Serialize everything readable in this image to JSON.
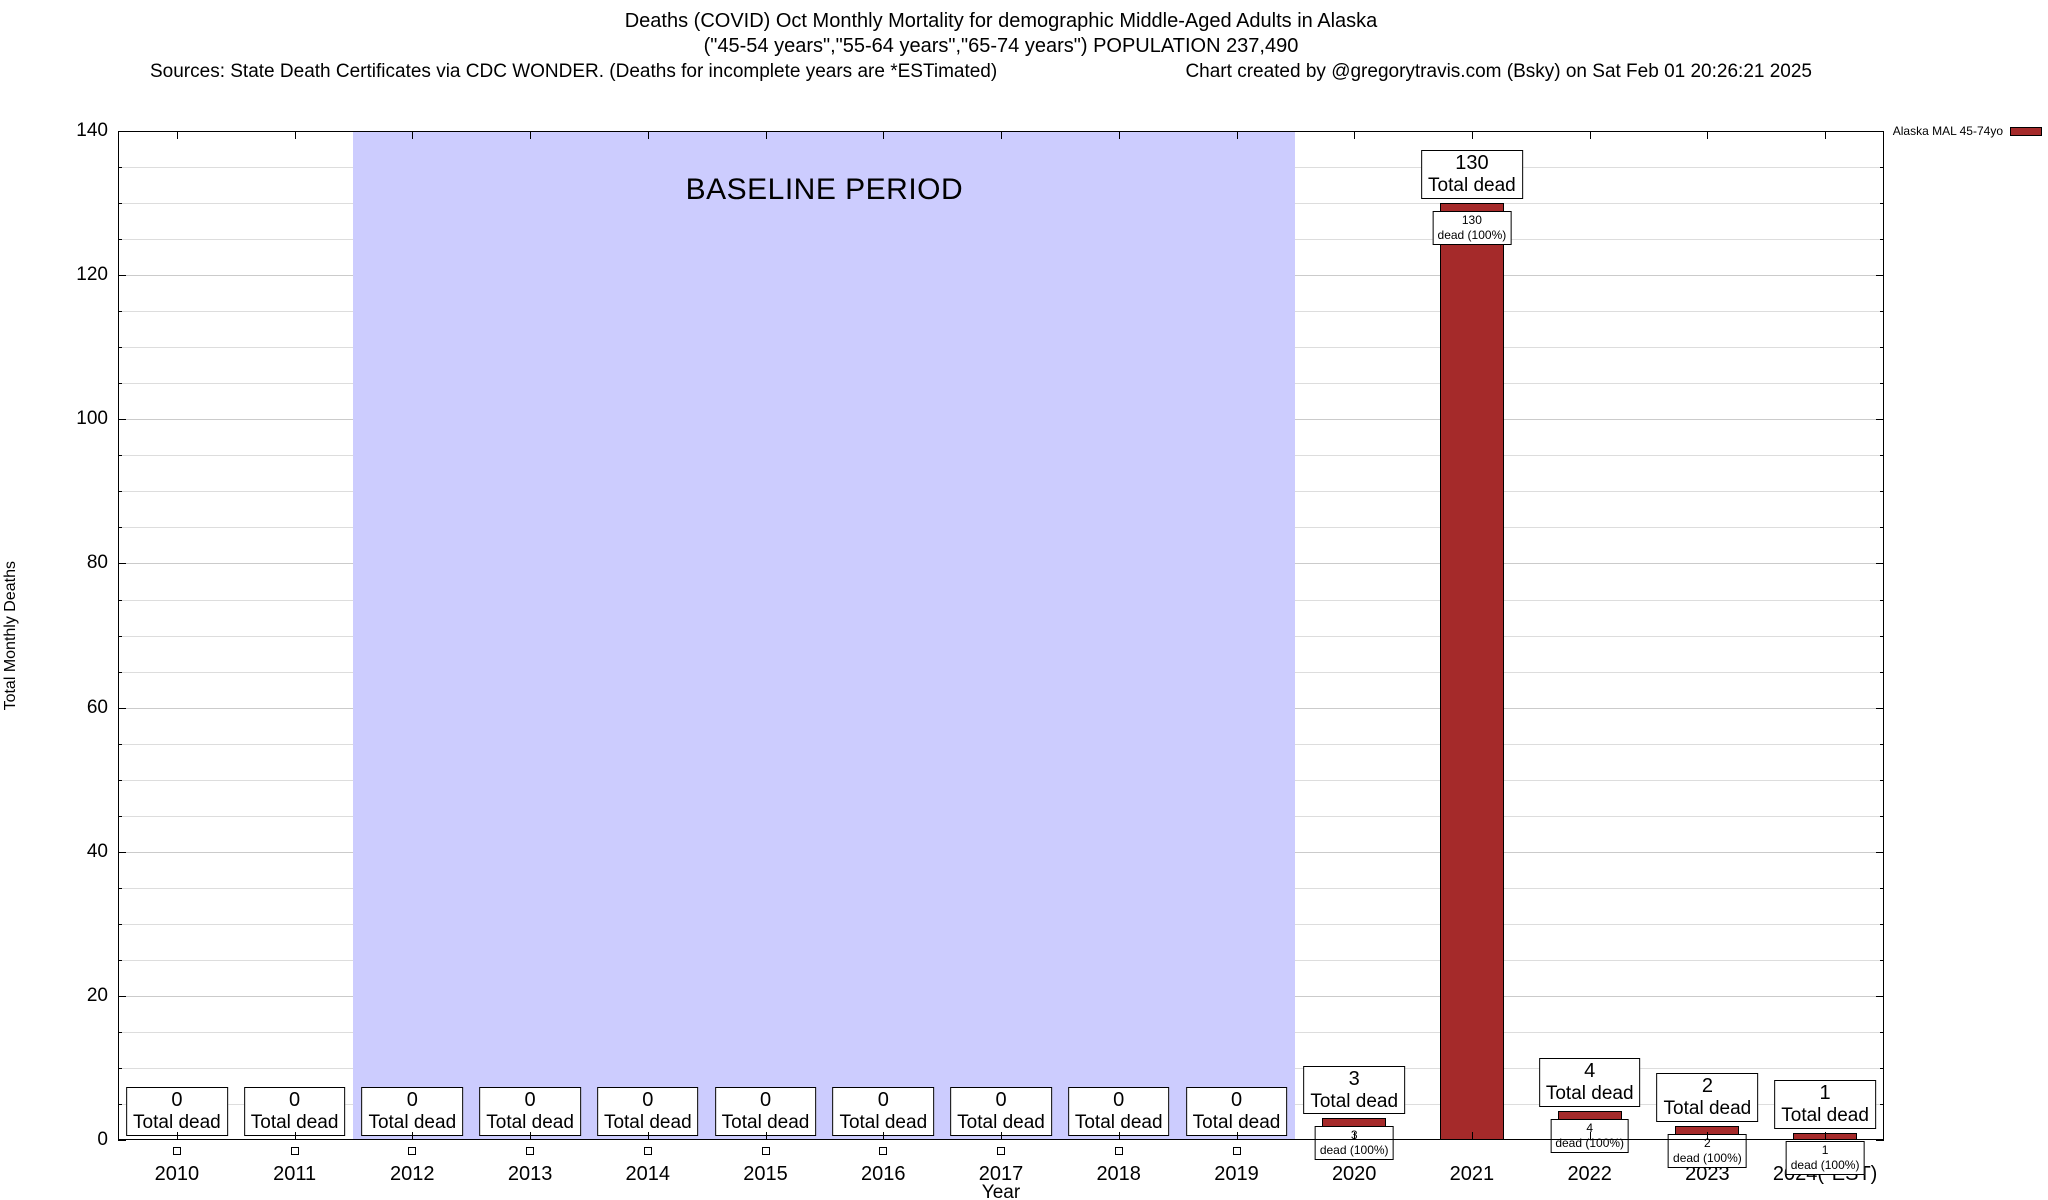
{
  "title": {
    "line1": "Deaths (COVID) Oct Monthly Mortality for demographic Middle-Aged Adults in Alaska",
    "line2": "(\"45-54 years\",\"55-64 years\",\"65-74 years\") POPULATION 237,490",
    "sources": "Sources: State Death Certificates via CDC WONDER. (Deaths for incomplete years are *ESTimated)",
    "credit": "Chart created by @gregorytravis.com (Bsky) on Sat Feb 01 20:26:21 2025"
  },
  "axes": {
    "ylabel": "Total Monthly Deaths",
    "xlabel": "Year"
  },
  "legend": {
    "label": "Alaska MAL 45-74yo"
  },
  "chart_data": {
    "type": "bar",
    "title": "Deaths (COVID) Oct Monthly Mortality for demographic Middle-Aged Adults in Alaska",
    "subtitle": "(\"45-54 years\",\"55-64 years\",\"65-74 years\") POPULATION 237,490",
    "xlabel": "Year",
    "ylabel": "Total Monthly Deaths",
    "ylim": [
      0,
      140
    ],
    "y_major_ticks": [
      0,
      20,
      40,
      60,
      80,
      100,
      120,
      140
    ],
    "y_minor_step": 5,
    "grid": true,
    "legend_position": "top-right-outside",
    "categories": [
      "2010",
      "2011",
      "2012",
      "2013",
      "2014",
      "2015",
      "2016",
      "2017",
      "2018",
      "2019",
      "2020",
      "2021",
      "2022",
      "2023",
      "2024(*EST)"
    ],
    "series": [
      {
        "name": "Alaska MAL 45-74yo",
        "values": [
          0,
          0,
          0,
          0,
          0,
          0,
          0,
          0,
          0,
          0,
          3,
          130,
          4,
          2,
          1
        ]
      }
    ],
    "bar_color": "#a52a2a",
    "baseline_region": {
      "label": "BASELINE PERIOD",
      "start_category": "2012",
      "end_category": "2019",
      "color": "#ccccfe"
    },
    "annotations": {
      "total_label": "Total dead",
      "pct_label": "dead (100%)"
    }
  }
}
